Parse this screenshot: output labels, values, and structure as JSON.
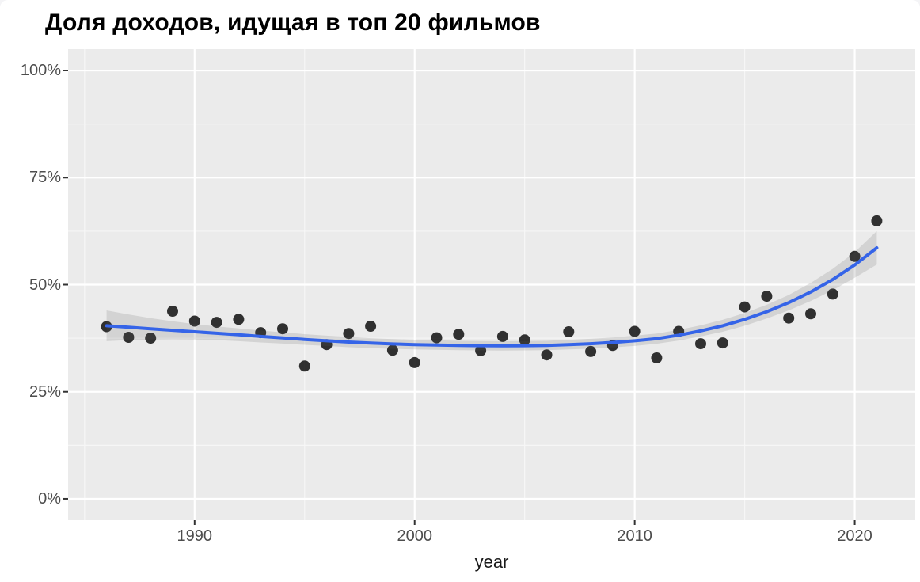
{
  "chart_data": {
    "type": "scatter",
    "title": "Доля доходов, идущая в топ 20 фильмов",
    "xlabel": "year",
    "ylabel": "",
    "legend": "none",
    "grid": "on",
    "x_domain": [
      1984.25,
      2022.75
    ],
    "y_domain": [
      -5,
      105
    ],
    "x_ticks": [
      {
        "value": 1990,
        "label": "1990"
      },
      {
        "value": 2000,
        "label": "2000"
      },
      {
        "value": 2010,
        "label": "2010"
      },
      {
        "value": 2020,
        "label": "2020"
      }
    ],
    "y_ticks": [
      {
        "value": 0,
        "label": "0%"
      },
      {
        "value": 25,
        "label": "25%"
      },
      {
        "value": 50,
        "label": "50%"
      },
      {
        "value": 75,
        "label": "75%"
      },
      {
        "value": 100,
        "label": "100%"
      }
    ],
    "x_minor_ticks": [
      1985,
      1995,
      2005,
      2015
    ],
    "y_minor_ticks": [
      12.5,
      37.5,
      62.5,
      87.5
    ],
    "points": {
      "years": [
        1986,
        1987,
        1988,
        1989,
        1990,
        1991,
        1992,
        1993,
        1994,
        1995,
        1996,
        1997,
        1998,
        1999,
        2000,
        2001,
        2002,
        2003,
        2004,
        2005,
        2006,
        2007,
        2008,
        2009,
        2010,
        2011,
        2012,
        2013,
        2014,
        2015,
        2016,
        2017,
        2018,
        2019,
        2020,
        2021
      ],
      "share_pct": [
        40.2,
        37.7,
        37.5,
        43.8,
        41.5,
        41.2,
        41.9,
        38.8,
        39.7,
        31.0,
        36.0,
        38.6,
        40.3,
        34.7,
        31.8,
        37.6,
        38.4,
        34.6,
        37.9,
        37.1,
        33.6,
        39.0,
        34.4,
        35.8,
        39.1,
        32.9,
        39.1,
        36.2,
        36.4,
        44.8,
        47.3,
        42.2,
        43.2,
        47.8,
        56.6,
        64.9
      ]
    },
    "smooth_line": {
      "years": [
        1986,
        1987,
        1988,
        1989,
        1990,
        1991,
        1992,
        1993,
        1994,
        1995,
        1996,
        1997,
        1998,
        1999,
        2000,
        2001,
        2002,
        2003,
        2004,
        2005,
        2006,
        2007,
        2008,
        2009,
        2010,
        2011,
        2012,
        2013,
        2014,
        2015,
        2016,
        2017,
        2018,
        2019,
        2020,
        2021
      ],
      "share_pct": [
        40.4,
        40.05,
        39.7,
        39.35,
        39.0,
        38.65,
        38.3,
        37.9,
        37.55,
        37.2,
        36.9,
        36.6,
        36.35,
        36.15,
        36.0,
        35.9,
        35.8,
        35.75,
        35.7,
        35.75,
        35.8,
        36.0,
        36.2,
        36.5,
        36.9,
        37.4,
        38.2,
        39.2,
        40.4,
        41.9,
        43.7,
        45.8,
        48.3,
        51.2,
        54.6,
        58.6
      ],
      "ci_half_width_pct": [
        3.6,
        3.0,
        2.5,
        2.1,
        1.8,
        1.6,
        1.5,
        1.4,
        1.3,
        1.25,
        1.2,
        1.2,
        1.15,
        1.15,
        1.1,
        1.1,
        1.1,
        1.1,
        1.1,
        1.1,
        1.1,
        1.1,
        1.15,
        1.15,
        1.2,
        1.2,
        1.25,
        1.3,
        1.4,
        1.5,
        1.6,
        1.8,
        2.1,
        2.5,
        3.0,
        3.9
      ]
    },
    "colors": {
      "panel_bg": "#EBEBEB",
      "grid": "#FFFFFF",
      "point": "#1C1C1C",
      "trend_line": "#3564E8",
      "ci_band": "rgba(95,95,95,0.17)",
      "axis_text": "#4D4D4D",
      "title_text": "#000000",
      "tick_mark": "#333333"
    }
  }
}
